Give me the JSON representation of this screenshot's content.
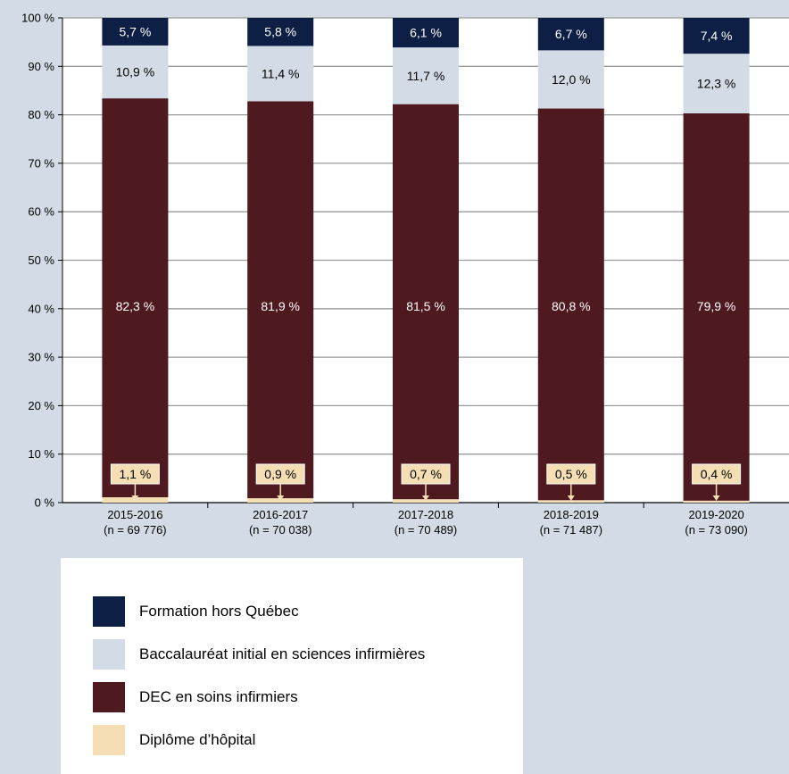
{
  "chart_data": {
    "type": "bar",
    "stacked": true,
    "categories": [
      "2015-2016",
      "2016-2017",
      "2017-2018",
      "2018-2019",
      "2019-2020"
    ],
    "category_n": [
      "(n = 69 776)",
      "(n = 70 038)",
      "(n = 70 489)",
      "(n = 71 487)",
      "(n = 73 090)"
    ],
    "ylim": [
      0,
      100
    ],
    "yticks": [
      0,
      10,
      20,
      30,
      40,
      50,
      60,
      70,
      80,
      90,
      100
    ],
    "ytick_labels": [
      "0 %",
      "10 %",
      "20 %",
      "30 %",
      "40 %",
      "50 %",
      "60 %",
      "70 %",
      "80 %",
      "90 %",
      "100 %"
    ],
    "grid": true,
    "series": [
      {
        "name": "Diplôme d’hôpital",
        "color": "#f5deb3",
        "values": [
          1.1,
          0.9,
          0.7,
          0.5,
          0.4
        ],
        "labels": [
          "1,1 %",
          "0,9 %",
          "0,7 %",
          "0,5 %",
          "0,4 %"
        ]
      },
      {
        "name": "DEC en soins infirmiers",
        "color": "#4f1920",
        "values": [
          82.3,
          81.9,
          81.5,
          80.8,
          79.9
        ],
        "labels": [
          "82,3 %",
          "81,9 %",
          "81,5 %",
          "80,8 %",
          "79,9 %"
        ]
      },
      {
        "name": "Baccalauréat initial en sciences infirmières",
        "color": "#d3dce6",
        "values": [
          10.9,
          11.4,
          11.7,
          12.0,
          12.3
        ],
        "labels": [
          "10,9 %",
          "11,4 %",
          "11,7 %",
          "12,0 %",
          "12,3 %"
        ]
      },
      {
        "name": "Formation hors Québec",
        "color": "#0d1f45",
        "values": [
          5.7,
          5.8,
          6.1,
          6.7,
          7.4
        ],
        "labels": [
          "5,7 %",
          "5,8 %",
          "6,1 %",
          "6,7 %",
          "7,4 %"
        ]
      }
    ],
    "legend_position": "bottom-left"
  },
  "legend": {
    "items": [
      {
        "label": "Formation hors Québec",
        "color": "#0d1f45"
      },
      {
        "label": "Baccalauréat initial en sciences infirmières",
        "color": "#d3dce6"
      },
      {
        "label": "DEC en soins infirmiers",
        "color": "#4f1920"
      },
      {
        "label": "Diplôme d’hôpital",
        "color": "#f5deb3"
      }
    ]
  },
  "colors": {
    "page_background": "#d3dce6",
    "plot_background": "#ffffff",
    "grid": "#9a9a9a",
    "label_box_fill": "#f5deb3"
  }
}
